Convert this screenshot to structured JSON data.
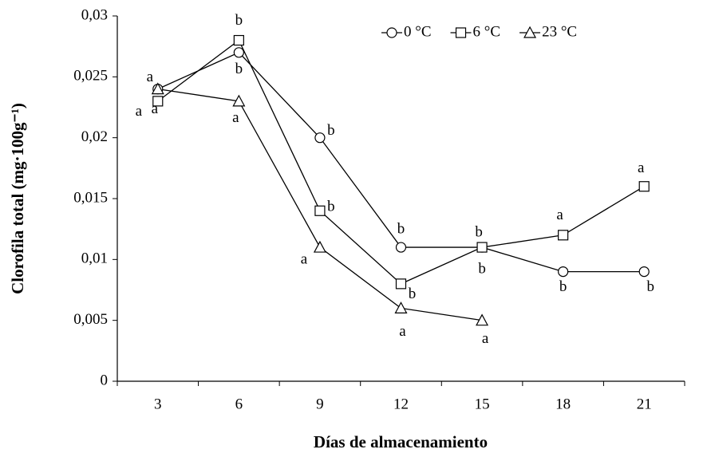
{
  "chart_data": {
    "type": "line",
    "x_label": "Días de almacenamiento",
    "y_label": "Clorofila total (mg·100g⁻¹)",
    "categories": [
      "3",
      "6",
      "9",
      "12",
      "15",
      "18",
      "21"
    ],
    "ylim": [
      0,
      0.03
    ],
    "yticks": [
      0,
      {
        "value": 0.005,
        "label": "0,005"
      },
      {
        "value": 0.01,
        "label": "0,01"
      },
      {
        "value": 0.015,
        "label": "0,015"
      },
      {
        "value": 0.02,
        "label": "0,02"
      },
      {
        "value": 0.025,
        "label": "0,025"
      },
      {
        "value": 0.03,
        "label": "0,03"
      }
    ],
    "legend": "top-right",
    "series": [
      {
        "name": "0 °C",
        "color": "#000000",
        "marker": "circle",
        "values": [
          0.024,
          0.027,
          0.02,
          0.011,
          0.011,
          0.009,
          0.009
        ],
        "letters": [
          "a",
          "b",
          "b",
          "b",
          "b",
          "b",
          "b"
        ]
      },
      {
        "name": "6 °C",
        "color": "#000000",
        "marker": "square",
        "values": [
          0.023,
          0.028,
          0.014,
          0.008,
          0.011,
          0.012,
          0.016
        ],
        "letters": [
          "a",
          "b",
          "b",
          "b",
          "b",
          "a",
          "a"
        ]
      },
      {
        "name": "23 °C",
        "color": "#000000",
        "marker": "triangle",
        "values": [
          0.024,
          0.023,
          0.011,
          0.006,
          0.005,
          null,
          null
        ],
        "letters": [
          "a",
          "a",
          "a",
          "a",
          "a",
          null,
          null
        ]
      }
    ]
  }
}
